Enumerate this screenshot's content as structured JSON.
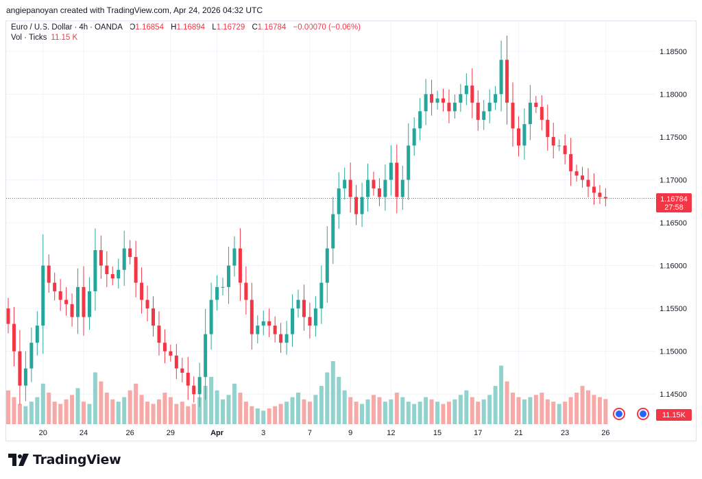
{
  "attribution": "angiepanoyan created with TradingView.com, Apr 24, 2026 04:32 UTC",
  "legend": {
    "symbol": "Euro / U.S. Dollar",
    "interval": "4h",
    "source": "OANDA",
    "open_key": "O",
    "open": "1.16854",
    "high_key": "H",
    "high": "1.16894",
    "low_key": "L",
    "low": "1.16729",
    "close_key": "C",
    "close": "1.16784",
    "change": "−0.00070 (−0.06%)",
    "volume_label": "Vol · Ticks",
    "volume_value": "11.15 K"
  },
  "price_label": {
    "price": "1.16784",
    "countdown": "27:58"
  },
  "volume_label": "11.15K",
  "logo_text": "TradingView",
  "colors": {
    "up": "#26a69a",
    "down": "#f23645",
    "up_volume": "#92d2cc",
    "down_volume": "#f7a9a7",
    "grid": "#f0f3fa"
  },
  "chart_data": {
    "type": "candlestick",
    "interval": "4h",
    "ylim": [
      1.1415,
      1.1885
    ],
    "y_ticks": [
      "1.18500",
      "1.18000",
      "1.17500",
      "1.17000",
      "1.16500",
      "1.16000",
      "1.15500",
      "1.15000",
      "1.14500"
    ],
    "x_tick_labels": [
      {
        "label": "20",
        "bar": 6,
        "bold": false
      },
      {
        "label": "24",
        "bar": 13,
        "bold": false
      },
      {
        "label": "26",
        "bar": 21,
        "bold": false
      },
      {
        "label": "29",
        "bar": 28,
        "bold": false
      },
      {
        "label": "Apr",
        "bar": 36,
        "bold": true
      },
      {
        "label": "3",
        "bar": 44,
        "bold": false
      },
      {
        "label": "7",
        "bar": 52,
        "bold": false
      },
      {
        "label": "9",
        "bar": 59,
        "bold": false
      },
      {
        "label": "12",
        "bar": 66,
        "bold": false
      },
      {
        "label": "15",
        "bar": 74,
        "bold": false
      },
      {
        "label": "17",
        "bar": 81,
        "bold": false
      },
      {
        "label": "21",
        "bar": 88,
        "bold": false
      },
      {
        "label": "23",
        "bar": 96,
        "bold": false
      },
      {
        "label": "26",
        "bar": 103,
        "bold": false
      }
    ],
    "closes": [
      1.1532,
      1.15,
      1.146,
      1.148,
      1.151,
      1.153,
      1.16,
      1.158,
      1.157,
      1.156,
      1.1555,
      1.154,
      1.1575,
      1.154,
      1.157,
      1.1618,
      1.16,
      1.159,
      1.1585,
      1.1595,
      1.162,
      1.161,
      1.158,
      1.156,
      1.155,
      1.153,
      1.151,
      1.15,
      1.1495,
      1.148,
      1.1475,
      1.146,
      1.145,
      1.147,
      1.152,
      1.156,
      1.1575,
      1.1575,
      1.16,
      1.162,
      1.158,
      1.156,
      1.152,
      1.153,
      1.1535,
      1.153,
      1.152,
      1.151,
      1.152,
      1.155,
      1.156,
      1.154,
      1.153,
      1.155,
      1.158,
      1.162,
      1.166,
      1.169,
      1.17,
      1.168,
      1.166,
      1.168,
      1.17,
      1.169,
      1.168,
      1.17,
      1.172,
      1.168,
      1.17,
      1.174,
      1.176,
      1.178,
      1.18,
      1.179,
      1.1795,
      1.179,
      1.178,
      1.179,
      1.18,
      1.181,
      1.179,
      1.177,
      1.178,
      1.179,
      1.18,
      1.184,
      1.179,
      1.176,
      1.174,
      1.1765,
      1.179,
      1.1785,
      1.177,
      1.175,
      1.174,
      1.174,
      1.173,
      1.171,
      1.1705,
      1.17,
      1.1692,
      1.1685,
      1.168,
      1.16784
    ],
    "volume_ticks_k": [
      15,
      12,
      9,
      8,
      10,
      12,
      18,
      14,
      10,
      9,
      11,
      13,
      16,
      10,
      9,
      23,
      19,
      14,
      11,
      10,
      12,
      15,
      18,
      13,
      10,
      9,
      11,
      14,
      12,
      9,
      10,
      8,
      9,
      12,
      17,
      21,
      15,
      11,
      13,
      18,
      14,
      10,
      8,
      7,
      6,
      7,
      8,
      9,
      10,
      12,
      14,
      11,
      10,
      13,
      17,
      23,
      28,
      21,
      15,
      12,
      10,
      9,
      11,
      13,
      12,
      10,
      11,
      14,
      12,
      10,
      9,
      10,
      12,
      11,
      10,
      9,
      10,
      11,
      13,
      15,
      12,
      10,
      11,
      13,
      17,
      26,
      19,
      14,
      12,
      11,
      12,
      13,
      14,
      11,
      10,
      9,
      10,
      12,
      14,
      17,
      15,
      13,
      12,
      11.15
    ],
    "last_price": 1.16784
  }
}
